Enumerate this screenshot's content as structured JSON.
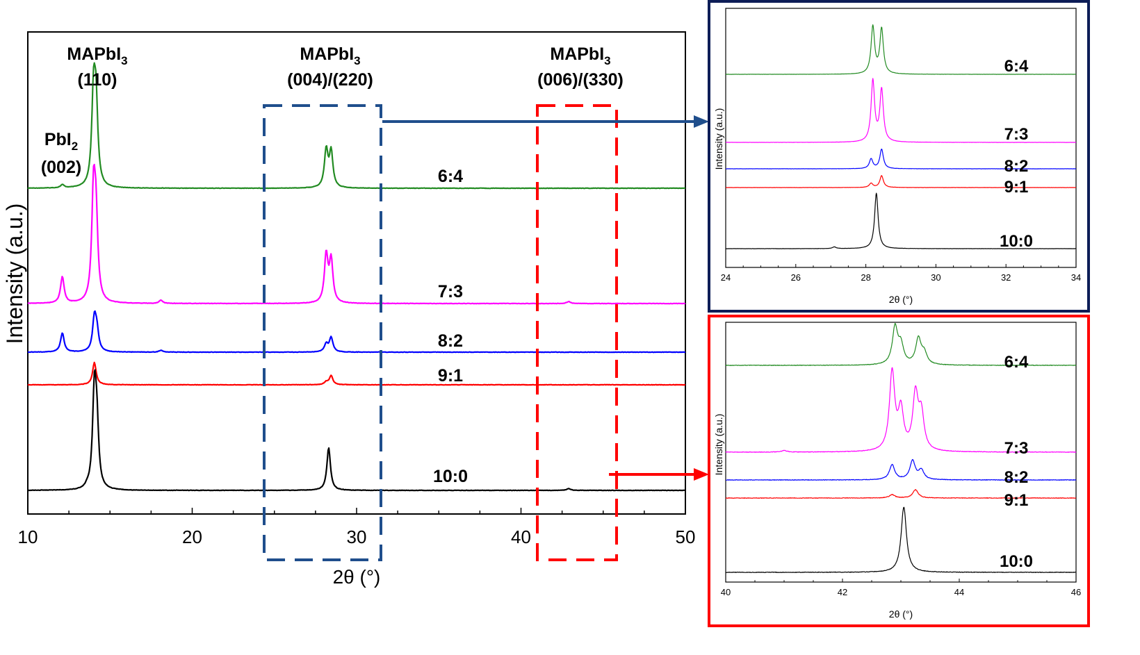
{
  "chart_data": [
    {
      "type": "line",
      "panel": "main",
      "xlabel": "2θ (°)",
      "ylabel": "Intensity (a.u.)",
      "xlim": [
        10,
        50
      ],
      "xticks": [
        "10",
        "20",
        "30",
        "40",
        "50"
      ],
      "annotations": [
        {
          "id": "pbi2",
          "line1": "PbI2",
          "line2": "(002)",
          "x": 12.6
        },
        {
          "id": "mapbi3_110",
          "line1": "MAPbI3",
          "line2": "(110)",
          "x": 14.1
        },
        {
          "id": "mapbi3_004",
          "line1": "MAPbI3",
          "line2": "(004)/(220)",
          "x": 28.3
        },
        {
          "id": "mapbi3_006",
          "line1": "MAPbI3",
          "line2": "(006)/(330)",
          "x": 43.0
        }
      ],
      "highlight_regions": [
        {
          "name": "blue-box",
          "xrange": [
            24.4,
            31.5
          ],
          "color": "#1f4e8c"
        },
        {
          "name": "red-box",
          "xrange": [
            41.0,
            45.0
          ],
          "color": "#ff0000"
        }
      ],
      "series": [
        {
          "name": "6:4",
          "color": "#228B22",
          "peaks": [
            {
              "x": 12.1,
              "h": 0.035
            },
            {
              "x": 14.0,
              "h": 1.0
            },
            {
              "x": 14.15,
              "h": 0.85
            },
            {
              "x": 28.15,
              "h": 0.42
            },
            {
              "x": 28.45,
              "h": 0.4
            }
          ]
        },
        {
          "name": "7:3",
          "color": "#ff00ff",
          "peaks": [
            {
              "x": 12.1,
              "h": 0.25
            },
            {
              "x": 14.0,
              "h": 1.0
            },
            {
              "x": 14.15,
              "h": 0.7
            },
            {
              "x": 18.1,
              "h": 0.03
            },
            {
              "x": 28.15,
              "h": 0.45
            },
            {
              "x": 28.45,
              "h": 0.4
            },
            {
              "x": 42.9,
              "h": 0.02
            }
          ]
        },
        {
          "name": "8:2",
          "color": "#0000ff",
          "peaks": [
            {
              "x": 12.1,
              "h": 0.5
            },
            {
              "x": 14.05,
              "h": 0.85
            },
            {
              "x": 14.2,
              "h": 0.5
            },
            {
              "x": 18.1,
              "h": 0.05
            },
            {
              "x": 28.15,
              "h": 0.2
            },
            {
              "x": 28.45,
              "h": 0.38
            }
          ]
        },
        {
          "name": "9:1",
          "color": "#ff0000",
          "peaks": [
            {
              "x": 14.05,
              "h": 1.0
            },
            {
              "x": 28.15,
              "h": 0.12
            },
            {
              "x": 28.45,
              "h": 0.4
            }
          ]
        },
        {
          "name": "10:0",
          "color": "#000000",
          "peaks": [
            {
              "x": 13.6,
              "h": 0.02
            },
            {
              "x": 14.05,
              "h": 1.0
            },
            {
              "x": 14.2,
              "h": 0.6
            },
            {
              "x": 28.3,
              "h": 0.45
            },
            {
              "x": 42.9,
              "h": 0.02
            }
          ]
        }
      ]
    },
    {
      "type": "line",
      "panel": "inset-top",
      "xlabel": "2θ (°)",
      "ylabel": "Intensity (a.u.)",
      "xlim": [
        24,
        34
      ],
      "xticks": [
        "24",
        "26",
        "28",
        "30",
        "32",
        "34"
      ],
      "series": [
        {
          "name": "6:4",
          "color": "#228B22",
          "peaks": [
            {
              "x": 28.2,
              "h": 1.0
            },
            {
              "x": 28.45,
              "h": 0.95
            }
          ]
        },
        {
          "name": "7:3",
          "color": "#ff00ff",
          "peaks": [
            {
              "x": 28.2,
              "h": 1.0
            },
            {
              "x": 28.45,
              "h": 0.85
            }
          ]
        },
        {
          "name": "8:2",
          "color": "#0000ff",
          "peaks": [
            {
              "x": 28.15,
              "h": 0.5
            },
            {
              "x": 28.45,
              "h": 1.0
            }
          ]
        },
        {
          "name": "9:1",
          "color": "#ff0000",
          "peaks": [
            {
              "x": 28.15,
              "h": 0.35
            },
            {
              "x": 28.45,
              "h": 1.0
            }
          ]
        },
        {
          "name": "10:0",
          "color": "#000000",
          "peaks": [
            {
              "x": 27.1,
              "h": 0.03
            },
            {
              "x": 28.3,
              "h": 1.0
            }
          ]
        }
      ]
    },
    {
      "type": "line",
      "panel": "inset-bottom",
      "xlabel": "2θ (°)",
      "ylabel": "Intensity (a.u.)",
      "xlim": [
        40,
        46
      ],
      "xticks": [
        "40",
        "42",
        "44",
        "46"
      ],
      "series": [
        {
          "name": "6:4",
          "color": "#228B22",
          "peaks": [
            {
              "x": 42.9,
              "h": 1.0
            },
            {
              "x": 43.0,
              "h": 0.5
            },
            {
              "x": 43.3,
              "h": 0.7
            },
            {
              "x": 43.4,
              "h": 0.3
            }
          ]
        },
        {
          "name": "7:3",
          "color": "#ff00ff",
          "peaks": [
            {
              "x": 41.0,
              "h": 0.02
            },
            {
              "x": 42.85,
              "h": 1.0
            },
            {
              "x": 43.0,
              "h": 0.5
            },
            {
              "x": 43.25,
              "h": 0.7
            },
            {
              "x": 43.35,
              "h": 0.45
            }
          ]
        },
        {
          "name": "8:2",
          "color": "#0000ff",
          "peaks": [
            {
              "x": 42.85,
              "h": 0.8
            },
            {
              "x": 43.2,
              "h": 1.0
            },
            {
              "x": 43.35,
              "h": 0.5
            }
          ]
        },
        {
          "name": "9:1",
          "color": "#ff0000",
          "peaks": [
            {
              "x": 42.85,
              "h": 0.4
            },
            {
              "x": 43.25,
              "h": 1.0
            }
          ]
        },
        {
          "name": "10:0",
          "color": "#000000",
          "peaks": [
            {
              "x": 43.05,
              "h": 1.0
            }
          ]
        }
      ]
    }
  ]
}
